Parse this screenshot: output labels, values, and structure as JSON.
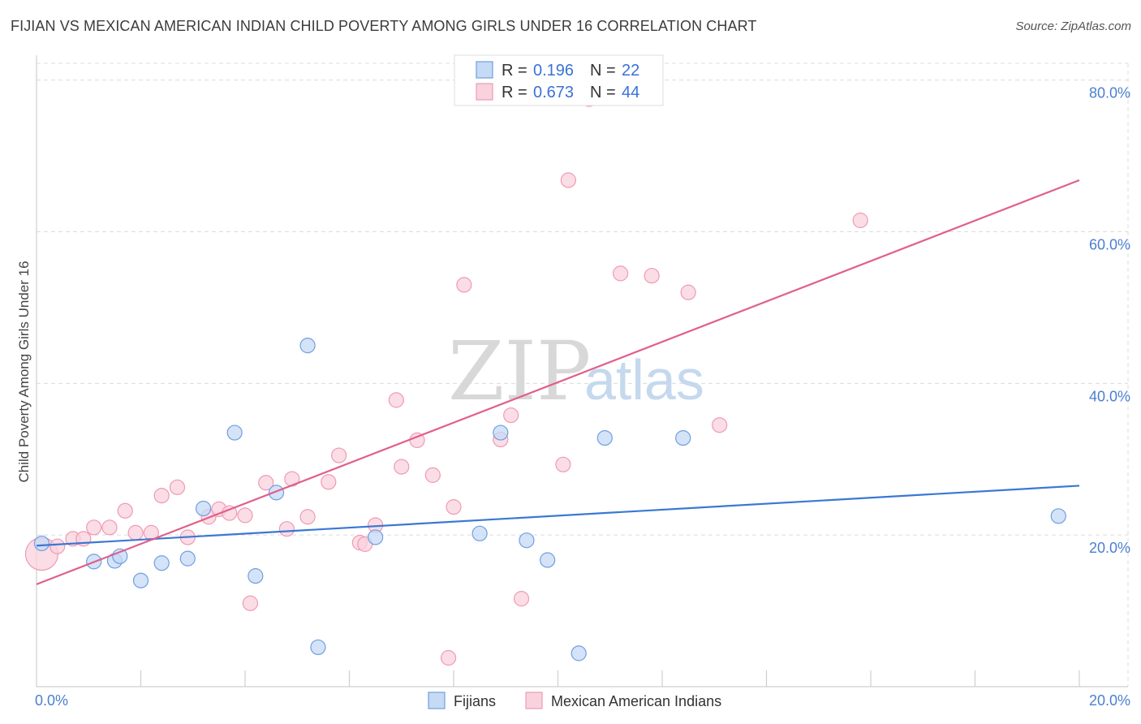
{
  "header": {
    "title": "FIJIAN VS MEXICAN AMERICAN INDIAN CHILD POVERTY AMONG GIRLS UNDER 16 CORRELATION CHART",
    "source": "Source: ZipAtlas.com"
  },
  "watermark": {
    "zip": "ZIP",
    "atlas": "atlas"
  },
  "chart_data": {
    "type": "scatter",
    "title": "FIJIAN VS MEXICAN AMERICAN INDIAN CHILD POVERTY AMONG GIRLS UNDER 16 CORRELATION CHART",
    "xlabel": "",
    "ylabel": "Child Poverty Among Girls Under 16",
    "xlim": [
      0,
      20
    ],
    "ylim": [
      0,
      82
    ],
    "x_tick_labels": [
      "0.0%",
      "20.0%"
    ],
    "y_ticks": [
      20,
      40,
      60,
      80
    ],
    "y_tick_labels": [
      "20.0%",
      "40.0%",
      "60.0%",
      "80.0%"
    ],
    "grid": true,
    "legend_position": "bottom",
    "stats": [
      {
        "r_label": "R =",
        "r_value": "0.196",
        "n_label": "N =",
        "n_value": "22"
      },
      {
        "r_label": "R =",
        "r_value": "0.673",
        "n_label": "N =",
        "n_value": "44"
      }
    ],
    "series": [
      {
        "name": "Fijians",
        "color": "#6f9fe0",
        "fill": "#c5daf5",
        "line_color": "#3a78d4",
        "trend": [
          [
            0,
            18.6
          ],
          [
            20,
            26.5
          ]
        ],
        "points": [
          [
            0.1,
            18.9
          ],
          [
            1.1,
            16.5
          ],
          [
            1.5,
            16.6
          ],
          [
            1.6,
            17.2
          ],
          [
            2.0,
            14.0
          ],
          [
            2.4,
            16.3
          ],
          [
            2.9,
            16.9
          ],
          [
            3.2,
            23.5
          ],
          [
            3.8,
            33.5
          ],
          [
            4.2,
            14.6
          ],
          [
            4.6,
            25.6
          ],
          [
            5.2,
            45.0
          ],
          [
            5.4,
            5.2
          ],
          [
            6.5,
            19.7
          ],
          [
            8.5,
            20.2
          ],
          [
            8.9,
            33.5
          ],
          [
            9.4,
            19.3
          ],
          [
            9.8,
            16.7
          ],
          [
            10.4,
            4.4
          ],
          [
            10.9,
            32.8
          ],
          [
            12.4,
            32.8
          ],
          [
            19.6,
            22.5
          ]
        ]
      },
      {
        "name": "Mexican American Indians",
        "color": "#ef9ab5",
        "fill": "#f9d2de",
        "line_color": "#e0608a",
        "trend": [
          [
            0,
            13.5
          ],
          [
            20,
            66.8
          ]
        ],
        "points": [
          [
            0.1,
            17.5
          ],
          [
            0.4,
            18.5
          ],
          [
            0.7,
            19.5
          ],
          [
            0.9,
            19.5
          ],
          [
            1.1,
            21.0
          ],
          [
            1.4,
            21.0
          ],
          [
            1.7,
            23.2
          ],
          [
            1.9,
            20.3
          ],
          [
            2.2,
            20.3
          ],
          [
            2.4,
            25.2
          ],
          [
            2.7,
            26.3
          ],
          [
            2.9,
            19.7
          ],
          [
            3.3,
            22.4
          ],
          [
            3.5,
            23.4
          ],
          [
            3.7,
            22.9
          ],
          [
            4.0,
            22.6
          ],
          [
            4.1,
            11.0
          ],
          [
            4.4,
            26.9
          ],
          [
            4.8,
            20.8
          ],
          [
            4.9,
            27.4
          ],
          [
            5.2,
            22.4
          ],
          [
            5.6,
            27.0
          ],
          [
            5.8,
            30.5
          ],
          [
            6.2,
            19.0
          ],
          [
            6.3,
            18.8
          ],
          [
            6.5,
            21.3
          ],
          [
            6.9,
            37.8
          ],
          [
            7.0,
            29.0
          ],
          [
            7.3,
            32.5
          ],
          [
            7.6,
            27.9
          ],
          [
            7.9,
            3.8
          ],
          [
            8.0,
            23.7
          ],
          [
            8.2,
            53.0
          ],
          [
            8.9,
            32.6
          ],
          [
            9.1,
            35.8
          ],
          [
            9.3,
            11.6
          ],
          [
            10.1,
            29.3
          ],
          [
            10.2,
            66.8
          ],
          [
            10.6,
            77.5
          ],
          [
            11.2,
            54.5
          ],
          [
            11.8,
            54.2
          ],
          [
            12.5,
            52.0
          ],
          [
            13.1,
            34.5
          ],
          [
            15.8,
            61.5
          ]
        ]
      }
    ]
  }
}
